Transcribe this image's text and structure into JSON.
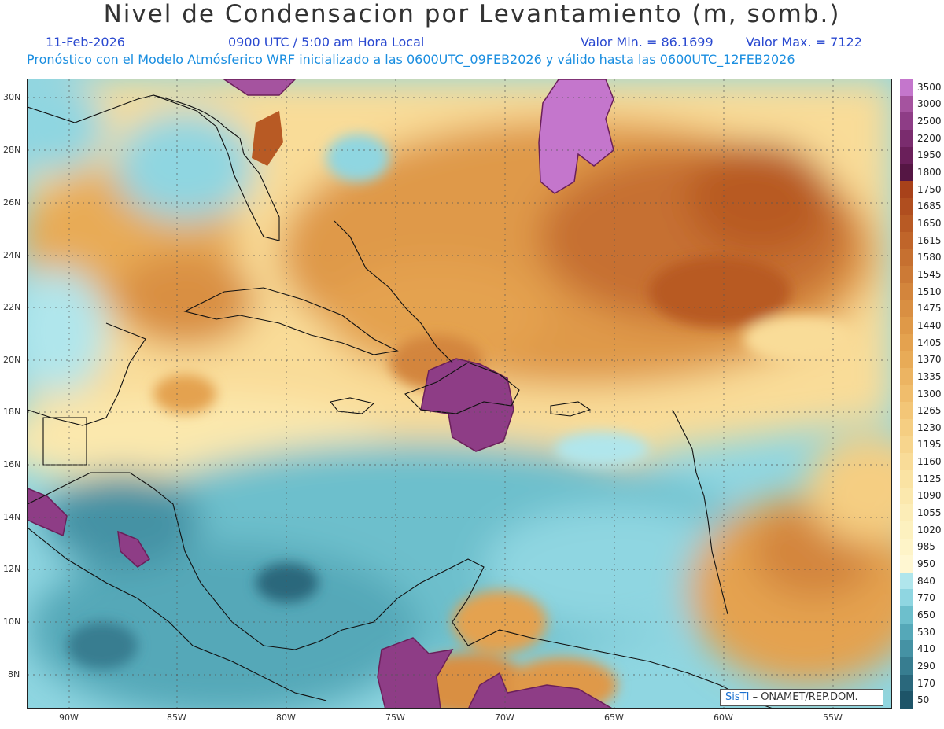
{
  "header": {
    "title": "Nivel de Condensacion por Levantamiento (m, somb.)",
    "date": "11-Feb-2026",
    "time": "0900 UTC / 5:00 am Hora Local",
    "min_value": "Valor Min. = 86.1699",
    "max_value": "Valor Max. = 7122",
    "forecast_info": "Pronóstico con el Modelo Atmósferico WRF inicializado a las 0600UTC_09FEB2026 y válido hasta las  0600UTC_12FEB2026"
  },
  "map": {
    "lat_labels": [
      "30N",
      "28N",
      "26N",
      "24N",
      "22N",
      "20N",
      "18N",
      "16N",
      "14N",
      "12N",
      "10N",
      "8N"
    ],
    "lon_labels": [
      "90W",
      "85W",
      "80W",
      "75W",
      "70W",
      "65W",
      "60W",
      "55W"
    ],
    "lat_range": [
      6.7,
      30.6
    ],
    "lon_range": [
      -92,
      -51.6
    ],
    "grid": true
  },
  "colorbar": {
    "levels": [
      "3500",
      "3000",
      "2500",
      "2200",
      "1950",
      "1800",
      "1750",
      "1685",
      "1650",
      "1615",
      "1580",
      "1545",
      "1510",
      "1475",
      "1440",
      "1405",
      "1370",
      "1335",
      "1300",
      "1265",
      "1230",
      "1195",
      "1160",
      "1125",
      "1090",
      "1055",
      "1020",
      "985",
      "950",
      "840",
      "770",
      "650",
      "530",
      "410",
      "290",
      "170",
      "50"
    ],
    "colors": [
      "#c476cc",
      "#a5539f",
      "#8e3d86",
      "#7a2c6e",
      "#6a1f5a",
      "#551644",
      "#a8421a",
      "#b04e1f",
      "#b85a24",
      "#c0652a",
      "#c67030",
      "#cc7a36",
      "#d3853c",
      "#d98f42",
      "#df9948",
      "#e4a24f",
      "#e8ab57",
      "#ecb462",
      "#f0bd6c",
      "#f3c677",
      "#f5ce82",
      "#f7d58d",
      "#f9dc98",
      "#fae3a3",
      "#fbe8ad",
      "#fcedb7",
      "#fdf1bf",
      "#fef4c8",
      "#fff7d2",
      "#b0e6ec",
      "#8fd6e1",
      "#6dbfcc",
      "#55a8b8",
      "#4592a4",
      "#377d90",
      "#2a687c",
      "#1d5468"
    ]
  },
  "credit": {
    "logo": "SisTI",
    "organization": "– ONAMET/REP.DOM."
  }
}
